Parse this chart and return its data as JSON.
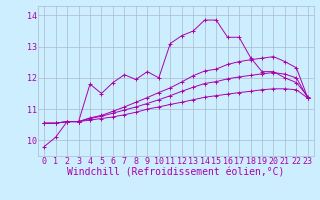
{
  "xlabel": "Windchill (Refroidissement éolien,°C)",
  "bg_color": "#cceeff",
  "grid_color": "#aabbcc",
  "line_color": "#aa00aa",
  "xlim": [
    -0.5,
    23.5
  ],
  "ylim": [
    9.5,
    14.3
  ],
  "yticks": [
    10,
    11,
    12,
    13,
    14
  ],
  "xticks": [
    0,
    1,
    2,
    3,
    4,
    5,
    6,
    7,
    8,
    9,
    10,
    11,
    12,
    13,
    14,
    15,
    16,
    17,
    18,
    19,
    20,
    21,
    22,
    23
  ],
  "series": [
    [
      9.8,
      10.1,
      10.6,
      10.6,
      11.8,
      11.5,
      11.85,
      12.1,
      11.95,
      12.2,
      12.0,
      13.1,
      13.35,
      13.5,
      13.85,
      13.85,
      13.3,
      13.3,
      12.65,
      12.2,
      12.2,
      12.0,
      11.85,
      11.4
    ],
    [
      10.55,
      10.55,
      10.6,
      10.6,
      10.65,
      10.7,
      10.75,
      10.82,
      10.9,
      11.0,
      11.07,
      11.15,
      11.22,
      11.3,
      11.38,
      11.43,
      11.48,
      11.53,
      11.57,
      11.62,
      11.65,
      11.65,
      11.62,
      11.35
    ],
    [
      10.55,
      10.55,
      10.6,
      10.6,
      10.7,
      10.77,
      10.87,
      10.97,
      11.07,
      11.18,
      11.3,
      11.43,
      11.57,
      11.7,
      11.82,
      11.88,
      11.97,
      12.03,
      12.08,
      12.13,
      12.17,
      12.12,
      12.0,
      11.35
    ],
    [
      10.55,
      10.55,
      10.6,
      10.6,
      10.72,
      10.8,
      10.93,
      11.07,
      11.22,
      11.37,
      11.53,
      11.68,
      11.87,
      12.07,
      12.22,
      12.28,
      12.43,
      12.52,
      12.58,
      12.63,
      12.68,
      12.52,
      12.32,
      11.35
    ]
  ],
  "xlabel_fontsize": 7,
  "tick_fontsize": 6,
  "lw": 0.7,
  "marker_size": 2.5,
  "marker_ew": 0.7
}
